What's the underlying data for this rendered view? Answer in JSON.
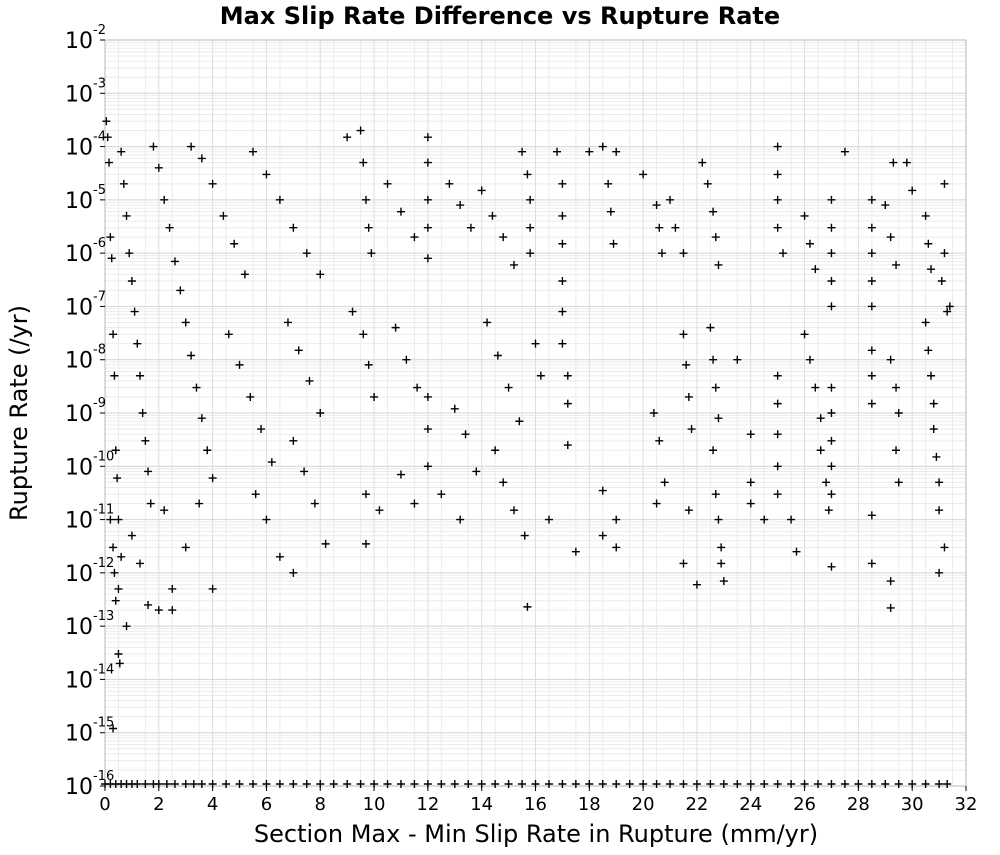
{
  "chart_data": {
    "type": "scatter",
    "title": "Max Slip Rate Difference vs Rupture Rate",
    "xlabel": "Section Max - Min Slip Rate in Rupture (mm/yr)",
    "ylabel": "Rupture Rate (/yr)",
    "xlim": [
      0,
      32
    ],
    "ylim": [
      1e-16,
      0.01
    ],
    "y_scale": "log",
    "x_ticks": [
      "0",
      "2",
      "4",
      "6",
      "8",
      "10",
      "12",
      "14",
      "16",
      "18",
      "20",
      "22",
      "24",
      "26",
      "28",
      "30",
      "32"
    ],
    "y_tick_base": "10",
    "y_tick_exponents": [
      "-16",
      "-15",
      "-14",
      "-13",
      "-12",
      "-11",
      "-10",
      "-9",
      "-8",
      "-7",
      "-6",
      "-5",
      "-4",
      "-3",
      "-2"
    ],
    "grid": true,
    "marker": "plus",
    "marker_color": "#000000",
    "floor_value": 1e-16,
    "points": [
      [
        0.05,
        0.0003
      ],
      [
        0.1,
        0.00015
      ],
      [
        0.15,
        5e-05
      ],
      [
        0.2,
        2e-06
      ],
      [
        0.25,
        8e-07
      ],
      [
        0.3,
        3e-08
      ],
      [
        0.35,
        5e-09
      ],
      [
        0.4,
        2e-10
      ],
      [
        0.45,
        6e-11
      ],
      [
        0.5,
        1e-11
      ],
      [
        0.2,
        1e-11
      ],
      [
        0.3,
        3e-12
      ],
      [
        0.35,
        1e-12
      ],
      [
        0.4,
        3e-13
      ],
      [
        0.3,
        1.2e-15
      ],
      [
        0.5,
        3e-14
      ],
      [
        0.55,
        2e-14
      ],
      [
        0.8,
        1e-13
      ],
      [
        0.5,
        5e-13
      ],
      [
        0.6,
        2e-12
      ],
      [
        0.6,
        8e-05
      ],
      [
        0.7,
        2e-05
      ],
      [
        0.8,
        5e-06
      ],
      [
        0.9,
        1e-06
      ],
      [
        1.0,
        3e-07
      ],
      [
        1.1,
        8e-08
      ],
      [
        1.2,
        2e-08
      ],
      [
        1.3,
        5e-09
      ],
      [
        1.4,
        1e-09
      ],
      [
        1.5,
        3e-10
      ],
      [
        1.6,
        8e-11
      ],
      [
        1.7,
        2e-11
      ],
      [
        1.0,
        5e-12
      ],
      [
        1.3,
        1.5e-12
      ],
      [
        1.6,
        2.5e-13
      ],
      [
        2.0,
        2e-13
      ],
      [
        2.5,
        2e-13
      ],
      [
        1.8,
        0.0001
      ],
      [
        2.0,
        4e-05
      ],
      [
        2.2,
        1e-05
      ],
      [
        2.4,
        3e-06
      ],
      [
        2.6,
        7e-07
      ],
      [
        2.8,
        2e-07
      ],
      [
        3.0,
        5e-08
      ],
      [
        3.2,
        1.2e-08
      ],
      [
        3.4,
        3e-09
      ],
      [
        3.6,
        8e-10
      ],
      [
        3.8,
        2e-10
      ],
      [
        4.0,
        6e-11
      ],
      [
        2.2,
        1.5e-11
      ],
      [
        2.5,
        5e-13
      ],
      [
        3.0,
        3e-12
      ],
      [
        3.5,
        2e-11
      ],
      [
        4.0,
        5e-13
      ],
      [
        3.2,
        0.0001
      ],
      [
        3.6,
        6e-05
      ],
      [
        4.0,
        2e-05
      ],
      [
        4.4,
        5e-06
      ],
      [
        4.8,
        1.5e-06
      ],
      [
        5.2,
        4e-07
      ],
      [
        4.6,
        3e-08
      ],
      [
        5.0,
        8e-09
      ],
      [
        5.4,
        2e-09
      ],
      [
        5.8,
        5e-10
      ],
      [
        6.2,
        1.2e-10
      ],
      [
        5.6,
        3e-11
      ],
      [
        6.0,
        1e-11
      ],
      [
        6.5,
        2e-12
      ],
      [
        7.0,
        1e-12
      ],
      [
        8.2,
        3.5e-12
      ],
      [
        5.5,
        8e-05
      ],
      [
        6.0,
        3e-05
      ],
      [
        6.5,
        1e-05
      ],
      [
        7.0,
        3e-06
      ],
      [
        7.5,
        1e-06
      ],
      [
        8.0,
        4e-07
      ],
      [
        6.8,
        5e-08
      ],
      [
        7.2,
        1.5e-08
      ],
      [
        7.6,
        4e-09
      ],
      [
        8.0,
        1e-09
      ],
      [
        7.0,
        3e-10
      ],
      [
        7.4,
        8e-11
      ],
      [
        7.8,
        2e-11
      ],
      [
        9.0,
        0.00015
      ],
      [
        9.5,
        0.0002
      ],
      [
        9.6,
        5e-05
      ],
      [
        9.7,
        1e-05
      ],
      [
        9.8,
        3e-06
      ],
      [
        9.9,
        1e-06
      ],
      [
        9.2,
        8e-08
      ],
      [
        9.6,
        3e-08
      ],
      [
        9.8,
        8e-09
      ],
      [
        10.0,
        2e-09
      ],
      [
        9.7,
        3e-11
      ],
      [
        10.2,
        1.5e-11
      ],
      [
        9.7,
        3.5e-12
      ],
      [
        10.5,
        2e-05
      ],
      [
        11.0,
        6e-06
      ],
      [
        11.5,
        2e-06
      ],
      [
        10.8,
        4e-08
      ],
      [
        11.2,
        1e-08
      ],
      [
        11.6,
        3e-09
      ],
      [
        11.0,
        7e-11
      ],
      [
        11.5,
        2e-11
      ],
      [
        12.0,
        0.00015
      ],
      [
        12.0,
        5e-05
      ],
      [
        12.0,
        1e-05
      ],
      [
        12.0,
        3e-06
      ],
      [
        12.0,
        8e-07
      ],
      [
        12.0,
        2e-09
      ],
      [
        12.0,
        5e-10
      ],
      [
        12.0,
        1e-10
      ],
      [
        12.5,
        3e-11
      ],
      [
        12.8,
        2e-05
      ],
      [
        13.2,
        8e-06
      ],
      [
        13.6,
        3e-06
      ],
      [
        13.0,
        1.2e-09
      ],
      [
        13.4,
        4e-10
      ],
      [
        13.8,
        8e-11
      ],
      [
        13.2,
        1e-11
      ],
      [
        14.0,
        1.5e-05
      ],
      [
        14.4,
        5e-06
      ],
      [
        14.8,
        2e-06
      ],
      [
        15.2,
        6e-07
      ],
      [
        14.2,
        5e-08
      ],
      [
        14.6,
        1.2e-08
      ],
      [
        15.0,
        3e-09
      ],
      [
        15.4,
        7e-10
      ],
      [
        14.5,
        2e-10
      ],
      [
        14.8,
        5e-11
      ],
      [
        15.2,
        1.5e-11
      ],
      [
        15.6,
        5e-12
      ],
      [
        15.7,
        2.3e-13
      ],
      [
        15.5,
        8e-05
      ],
      [
        15.7,
        3e-05
      ],
      [
        15.8,
        1e-05
      ],
      [
        15.8,
        3e-06
      ],
      [
        15.8,
        1e-06
      ],
      [
        16.0,
        2e-08
      ],
      [
        16.2,
        5e-09
      ],
      [
        16.5,
        1e-11
      ],
      [
        16.8,
        8e-05
      ],
      [
        17.0,
        2e-05
      ],
      [
        17.0,
        5e-06
      ],
      [
        17.0,
        1.5e-06
      ],
      [
        17.0,
        3e-07
      ],
      [
        17.0,
        8e-08
      ],
      [
        17.0,
        2e-08
      ],
      [
        17.2,
        5e-09
      ],
      [
        17.2,
        1.5e-09
      ],
      [
        17.2,
        2.5e-10
      ],
      [
        17.5,
        2.5e-12
      ],
      [
        18.0,
        8e-05
      ],
      [
        18.5,
        0.0001
      ],
      [
        18.7,
        2e-05
      ],
      [
        18.8,
        6e-06
      ],
      [
        18.9,
        1.5e-06
      ],
      [
        18.5,
        3.5e-11
      ],
      [
        19.0,
        1e-11
      ],
      [
        18.5,
        5e-12
      ],
      [
        19.0,
        3e-12
      ],
      [
        19.0,
        8e-05
      ],
      [
        20.0,
        3e-05
      ],
      [
        20.5,
        8e-06
      ],
      [
        20.6,
        3e-06
      ],
      [
        20.7,
        1e-06
      ],
      [
        20.4,
        1e-09
      ],
      [
        20.6,
        3e-10
      ],
      [
        20.8,
        5e-11
      ],
      [
        20.5,
        2e-11
      ],
      [
        21.0,
        1e-05
      ],
      [
        21.2,
        3e-06
      ],
      [
        21.5,
        1e-06
      ],
      [
        21.5,
        3e-08
      ],
      [
        21.6,
        8e-09
      ],
      [
        21.7,
        2e-09
      ],
      [
        21.8,
        5e-10
      ],
      [
        21.7,
        1.5e-11
      ],
      [
        21.5,
        1.5e-12
      ],
      [
        22.0,
        6e-13
      ],
      [
        22.2,
        5e-05
      ],
      [
        22.4,
        2e-05
      ],
      [
        22.6,
        6e-06
      ],
      [
        22.7,
        2e-06
      ],
      [
        22.8,
        6e-07
      ],
      [
        22.5,
        4e-08
      ],
      [
        22.6,
        1e-08
      ],
      [
        22.7,
        3e-09
      ],
      [
        22.8,
        8e-10
      ],
      [
        22.6,
        2e-10
      ],
      [
        22.7,
        3e-11
      ],
      [
        22.8,
        1e-11
      ],
      [
        22.9,
        3e-12
      ],
      [
        22.9,
        1.5e-12
      ],
      [
        23.0,
        7e-13
      ],
      [
        23.5,
        1e-08
      ],
      [
        24.0,
        4e-10
      ],
      [
        24.0,
        5e-11
      ],
      [
        24.0,
        2e-11
      ],
      [
        24.5,
        1e-11
      ],
      [
        25.0,
        0.0001
      ],
      [
        25.0,
        3e-05
      ],
      [
        25.0,
        1e-05
      ],
      [
        25.0,
        3e-06
      ],
      [
        25.2,
        1e-06
      ],
      [
        25.0,
        5e-09
      ],
      [
        25.0,
        1.5e-09
      ],
      [
        25.0,
        4e-10
      ],
      [
        25.0,
        1e-10
      ],
      [
        25.0,
        3e-11
      ],
      [
        25.5,
        1e-11
      ],
      [
        25.7,
        2.5e-12
      ],
      [
        26.0,
        5e-06
      ],
      [
        26.2,
        1.5e-06
      ],
      [
        26.4,
        5e-07
      ],
      [
        26.0,
        3e-08
      ],
      [
        26.2,
        1e-08
      ],
      [
        26.4,
        3e-09
      ],
      [
        26.6,
        8e-10
      ],
      [
        26.6,
        2e-10
      ],
      [
        26.8,
        5e-11
      ],
      [
        26.9,
        1.5e-11
      ],
      [
        27.0,
        1e-05
      ],
      [
        27.0,
        3e-06
      ],
      [
        27.0,
        1e-06
      ],
      [
        27.0,
        3e-07
      ],
      [
        27.0,
        1e-07
      ],
      [
        27.0,
        3e-09
      ],
      [
        27.0,
        1e-09
      ],
      [
        27.0,
        3e-10
      ],
      [
        27.0,
        1e-10
      ],
      [
        27.0,
        3e-11
      ],
      [
        27.0,
        1.3e-12
      ],
      [
        27.5,
        8e-05
      ],
      [
        28.5,
        1e-05
      ],
      [
        28.5,
        3e-06
      ],
      [
        28.5,
        1e-06
      ],
      [
        28.5,
        3e-07
      ],
      [
        28.5,
        1e-07
      ],
      [
        28.5,
        1.5e-08
      ],
      [
        28.5,
        5e-09
      ],
      [
        28.5,
        1.5e-09
      ],
      [
        28.5,
        1.2e-11
      ],
      [
        28.5,
        1.5e-12
      ],
      [
        29.0,
        8e-06
      ],
      [
        29.2,
        2e-06
      ],
      [
        29.4,
        6e-07
      ],
      [
        29.2,
        1e-08
      ],
      [
        29.4,
        3e-09
      ],
      [
        29.5,
        1e-09
      ],
      [
        29.4,
        2e-10
      ],
      [
        29.5,
        5e-11
      ],
      [
        29.2,
        7e-13
      ],
      [
        29.2,
        2.2e-13
      ],
      [
        29.3,
        5e-05
      ],
      [
        29.8,
        5e-05
      ],
      [
        30.0,
        1.5e-05
      ],
      [
        30.5,
        5e-06
      ],
      [
        30.6,
        1.5e-06
      ],
      [
        30.7,
        5e-07
      ],
      [
        30.5,
        5e-08
      ],
      [
        30.6,
        1.5e-08
      ],
      [
        30.7,
        5e-09
      ],
      [
        30.8,
        1.5e-09
      ],
      [
        30.8,
        5e-10
      ],
      [
        30.9,
        1.5e-10
      ],
      [
        31.0,
        5e-11
      ],
      [
        31.0,
        1.5e-11
      ],
      [
        31.0,
        1e-12
      ],
      [
        31.2,
        3e-12
      ],
      [
        31.4,
        1e-07
      ],
      [
        31.3,
        8e-08
      ],
      [
        31.1,
        3e-07
      ],
      [
        31.2,
        1e-06
      ],
      [
        31.2,
        2e-05
      ]
    ],
    "points_at_floor_x": [
      0.0,
      0.2,
      0.4,
      0.6,
      0.8,
      1.0,
      1.2,
      1.5,
      1.8,
      2.0,
      2.3,
      2.6,
      3.0,
      3.3,
      3.6,
      4.0,
      4.5,
      5.0,
      5.5,
      6.0,
      6.5,
      7.0,
      7.5,
      8.0,
      8.5,
      9.0,
      9.5,
      10.0,
      10.5,
      11.0,
      11.5,
      12.0,
      12.5,
      13.0,
      13.5,
      14.0,
      14.5,
      15.0,
      15.5,
      16.0,
      16.5,
      17.0,
      17.5,
      18.0,
      18.5,
      19.0,
      19.5,
      20.0,
      20.5,
      21.0,
      21.5,
      22.0,
      22.5,
      23.0,
      23.5,
      24.0,
      24.5,
      25.0,
      25.5,
      26.0,
      26.5,
      27.0,
      27.5,
      28.0,
      28.5,
      29.0,
      29.5,
      30.0,
      30.5,
      31.0,
      31.3
    ]
  }
}
